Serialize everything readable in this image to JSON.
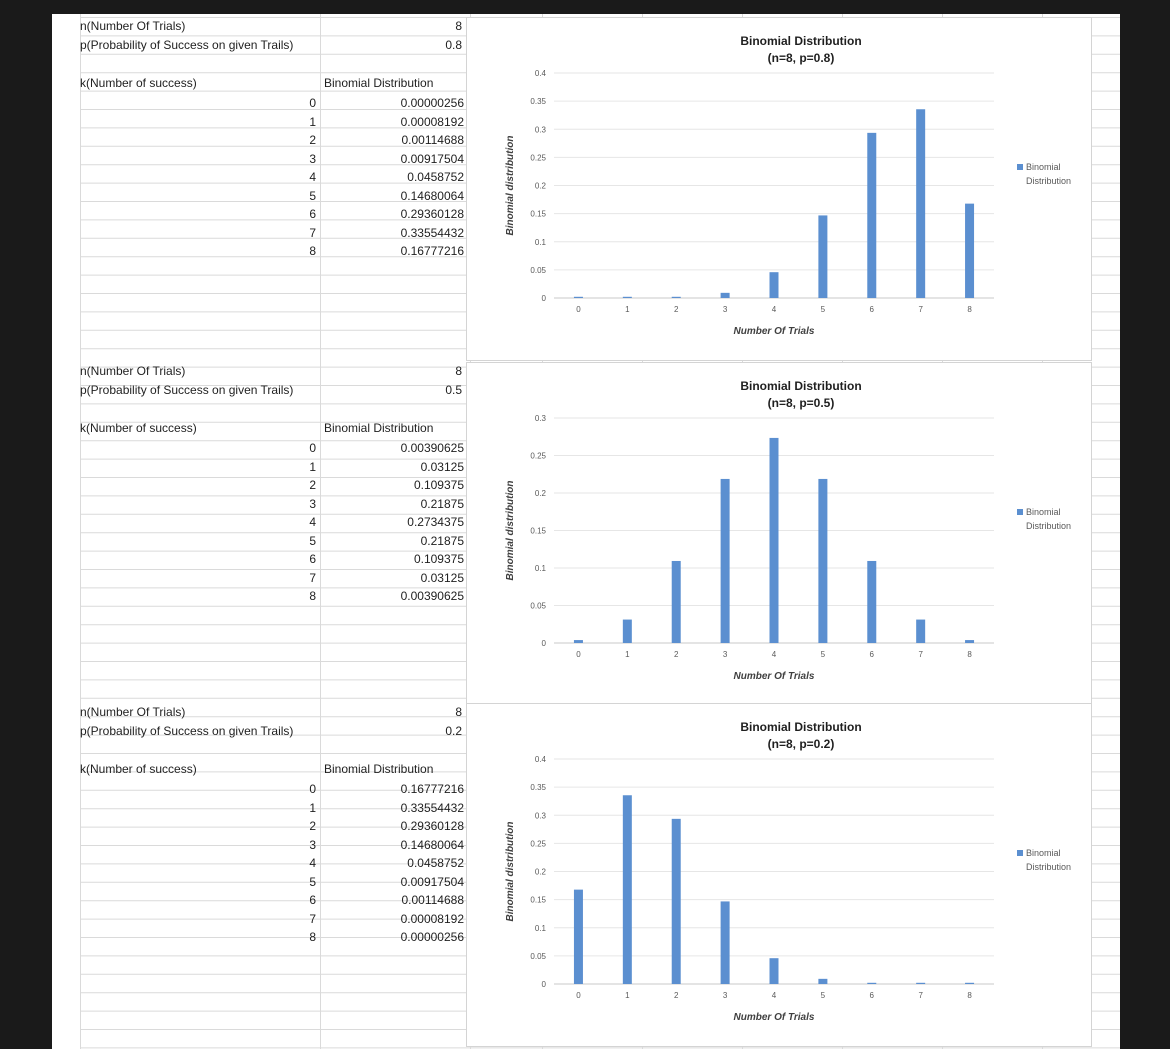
{
  "panels": [
    {
      "n_label": "n(Number Of Trials)",
      "n_value": "8",
      "p_label": "p(Probability of Success on given Trails)",
      "p_value": "0.8",
      "k_header": "k(Number of success)",
      "dist_header": "Binomial Distribution",
      "rows": [
        {
          "k": "0",
          "v": "0.00000256"
        },
        {
          "k": "1",
          "v": "0.00008192"
        },
        {
          "k": "2",
          "v": "0.00114688"
        },
        {
          "k": "3",
          "v": "0.00917504"
        },
        {
          "k": "4",
          "v": "0.0458752"
        },
        {
          "k": "5",
          "v": "0.14680064"
        },
        {
          "k": "6",
          "v": "0.29360128"
        },
        {
          "k": "7",
          "v": "0.33554432"
        },
        {
          "k": "8",
          "v": "0.16777216"
        }
      ]
    },
    {
      "n_label": "n(Number Of Trials)",
      "n_value": "8",
      "p_label": "p(Probability of Success on given Trails)",
      "p_value": "0.5",
      "k_header": "k(Number of success)",
      "dist_header": "Binomial Distribution",
      "rows": [
        {
          "k": "0",
          "v": "0.00390625"
        },
        {
          "k": "1",
          "v": "0.03125"
        },
        {
          "k": "2",
          "v": "0.109375"
        },
        {
          "k": "3",
          "v": "0.21875"
        },
        {
          "k": "4",
          "v": "0.2734375"
        },
        {
          "k": "5",
          "v": "0.21875"
        },
        {
          "k": "6",
          "v": "0.109375"
        },
        {
          "k": "7",
          "v": "0.03125"
        },
        {
          "k": "8",
          "v": "0.00390625"
        }
      ]
    },
    {
      "n_label": "n(Number Of Trials)",
      "n_value": "8",
      "p_label": "p(Probability of Success on given Trails)",
      "p_value": "0.2",
      "k_header": "k(Number of success)",
      "dist_header": "Binomial Distribution",
      "rows": [
        {
          "k": "0",
          "v": "0.16777216"
        },
        {
          "k": "1",
          "v": "0.33554432"
        },
        {
          "k": "2",
          "v": "0.29360128"
        },
        {
          "k": "3",
          "v": "0.14680064"
        },
        {
          "k": "4",
          "v": "0.0458752"
        },
        {
          "k": "5",
          "v": "0.00917504"
        },
        {
          "k": "6",
          "v": "0.00114688"
        },
        {
          "k": "7",
          "v": "0.00008192"
        },
        {
          "k": "8",
          "v": "0.00000256"
        }
      ]
    }
  ],
  "colors": {
    "bar": "#5b8fd0",
    "gridline": "#e6e6e6",
    "sheet_grid": "#dadada",
    "background": "#1a1a1a"
  },
  "chart_data": [
    {
      "type": "bar",
      "title": "Binomial Distribution",
      "subtitle": "(n=8, p=0.8)",
      "xlabel": "Number Of Trials",
      "ylabel": "Binomial distribution",
      "categories": [
        "0",
        "1",
        "2",
        "3",
        "4",
        "5",
        "6",
        "7",
        "8"
      ],
      "series": [
        {
          "name": "Binomial Distribution",
          "values": [
            2.56e-06,
            8.192e-05,
            0.00114688,
            0.00917504,
            0.0458752,
            0.14680064,
            0.29360128,
            0.33554432,
            0.16777216
          ]
        }
      ],
      "ylim": [
        0,
        0.4
      ],
      "yticks": [
        "0",
        "0.05",
        "0.1",
        "0.15",
        "0.2",
        "0.25",
        "0.3",
        "0.35",
        "0.4"
      ],
      "legend": "right",
      "grid": true
    },
    {
      "type": "bar",
      "title": "Binomial Distribution",
      "subtitle": "(n=8, p=0.5)",
      "xlabel": "Number Of Trials",
      "ylabel": "Binomial distribution",
      "categories": [
        "0",
        "1",
        "2",
        "3",
        "4",
        "5",
        "6",
        "7",
        "8"
      ],
      "series": [
        {
          "name": "Binomial Distribution",
          "values": [
            0.00390625,
            0.03125,
            0.109375,
            0.21875,
            0.2734375,
            0.21875,
            0.109375,
            0.03125,
            0.00390625
          ]
        }
      ],
      "ylim": [
        0,
        0.3
      ],
      "yticks": [
        "0",
        "0.05",
        "0.1",
        "0.15",
        "0.2",
        "0.25",
        "0.3"
      ],
      "legend": "right",
      "grid": true
    },
    {
      "type": "bar",
      "title": "Binomial Distribution",
      "subtitle": "(n=8, p=0.2)",
      "xlabel": "Number Of Trials",
      "ylabel": "Binomial distribution",
      "categories": [
        "0",
        "1",
        "2",
        "3",
        "4",
        "5",
        "6",
        "7",
        "8"
      ],
      "series": [
        {
          "name": "Binomial Distribution",
          "values": [
            0.16777216,
            0.33554432,
            0.29360128,
            0.14680064,
            0.0458752,
            0.00917504,
            0.00114688,
            8.192e-05,
            2.56e-06
          ]
        }
      ],
      "ylim": [
        0,
        0.4
      ],
      "yticks": [
        "0",
        "0.05",
        "0.1",
        "0.15",
        "0.2",
        "0.25",
        "0.3",
        "0.35",
        "0.4"
      ],
      "legend": "right",
      "grid": true
    }
  ]
}
